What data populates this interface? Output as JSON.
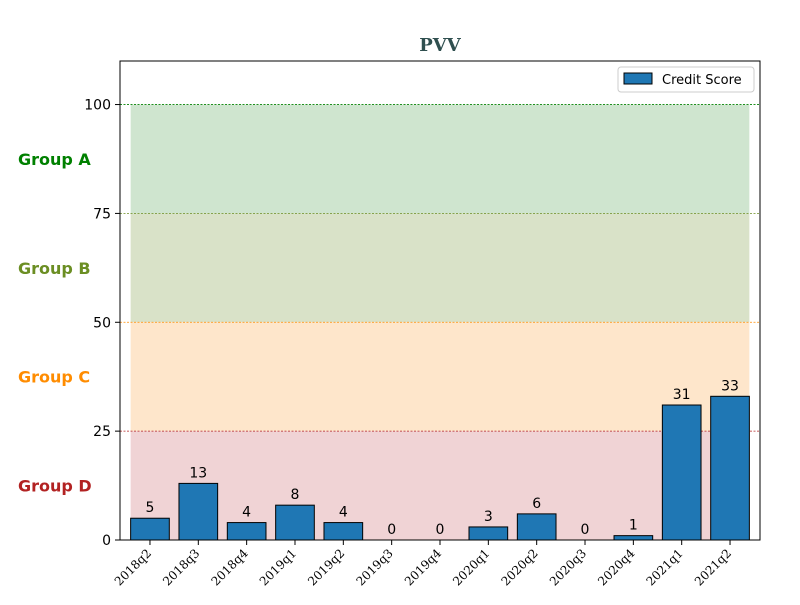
{
  "colors": {
    "bar": "#1f77b4",
    "bar_edge": "#000000",
    "title": "#2f4f4f"
  },
  "chart_data": {
    "type": "bar",
    "title": "PVV",
    "xlabel": "",
    "ylabel": "",
    "categories": [
      "2018q2",
      "2018q3",
      "2018q4",
      "2019q1",
      "2019q2",
      "2019q3",
      "2019q4",
      "2020q1",
      "2020q2",
      "2020q3",
      "2020q4",
      "2021q1",
      "2021q2"
    ],
    "series": [
      {
        "name": "Credit Score",
        "values": [
          5,
          13,
          4,
          8,
          4,
          0,
          0,
          3,
          6,
          0,
          1,
          31,
          33
        ]
      }
    ],
    "ylim": [
      0,
      110
    ],
    "yticks": [
      0,
      25,
      50,
      75,
      100
    ],
    "legend_position": "top-right",
    "bands": [
      {
        "label": "Group A",
        "from": 75,
        "to": 100,
        "color": "#008000",
        "fill": "#cfe5cf"
      },
      {
        "label": "Group B",
        "from": 50,
        "to": 75,
        "color": "#6b8e23",
        "fill": "#d9e2c8"
      },
      {
        "label": "Group C",
        "from": 25,
        "to": 50,
        "color": "#ff8c00",
        "fill": "#fee6cb"
      },
      {
        "label": "Group D",
        "from": 0,
        "to": 25,
        "color": "#b22222",
        "fill": "#f0d3d5"
      }
    ],
    "band_lines": [
      {
        "value": 100,
        "color": "#008000"
      },
      {
        "value": 75,
        "color": "#6b8e23"
      },
      {
        "value": 50,
        "color": "#ff8c00"
      },
      {
        "value": 25,
        "color": "#b22222"
      }
    ]
  }
}
